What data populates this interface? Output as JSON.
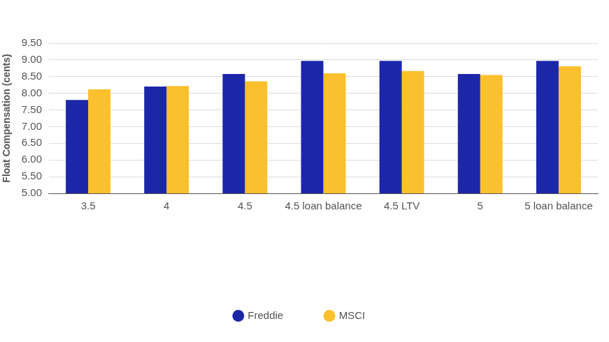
{
  "chart_data": {
    "type": "bar",
    "y_label": "Float Compensation (cents)",
    "categories": [
      "3.5",
      "4",
      "4.5",
      "4.5 loan balance",
      "4.5 LTV",
      "5",
      "5 loan balance"
    ],
    "series": [
      {
        "name": "Freddie",
        "color": "#1c27a8",
        "values": [
          7.8,
          8.2,
          8.58,
          8.97,
          8.97,
          8.58,
          8.97
        ]
      },
      {
        "name": "MSCI",
        "color": "#fbc02d",
        "values": [
          8.12,
          8.22,
          8.36,
          8.6,
          8.67,
          8.55,
          8.81
        ]
      }
    ],
    "ylim": [
      5,
      9.5
    ],
    "yticks": [
      {
        "value": 5,
        "label": "5.00"
      },
      {
        "value": 5.5,
        "label": "5.50"
      },
      {
        "value": 6,
        "label": "6.00"
      },
      {
        "value": 6.5,
        "label": "6.50"
      },
      {
        "value": 7,
        "label": "7.00"
      },
      {
        "value": 7.5,
        "label": "7.50"
      },
      {
        "value": 8,
        "label": "8.00"
      },
      {
        "value": 8.5,
        "label": "8.50"
      },
      {
        "value": 9,
        "label": "9.00"
      },
      {
        "value": 9.5,
        "label": "9.50"
      }
    ],
    "grid": true,
    "legend": "bottom"
  }
}
